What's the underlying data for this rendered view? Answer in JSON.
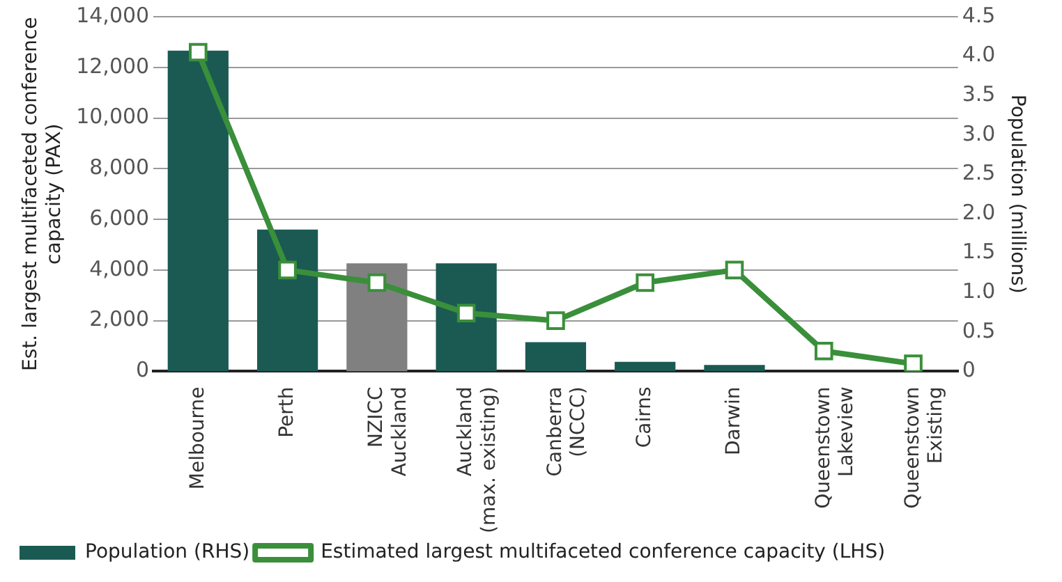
{
  "chart_data": {
    "type": "bar",
    "categories": [
      "Melbourne",
      "Perth",
      "NZICC Auckland",
      "Auckland (max. existing)",
      "Canberra (NCCC)",
      "Cairns",
      "Darwin",
      "Queenstown Lakeview",
      "Queenstown Existing"
    ],
    "series": [
      {
        "name": "Population (RHS)",
        "axis": "y2",
        "color": "#1b5a52",
        "colors": [
          "#1b5a52",
          "#1b5a52",
          "#808080",
          "#1b5a52",
          "#1b5a52",
          "#1b5a52",
          "#1b5a52",
          "#1b5a52",
          "#1b5a52"
        ],
        "values": [
          4.07,
          1.8,
          1.37,
          1.37,
          0.37,
          0.12,
          0.08,
          null,
          null
        ]
      },
      {
        "name": "Estimated largest multifaceted conference capacity (LHS)",
        "type": "line",
        "axis": "y",
        "color": "#3a8f3a",
        "marker": "square",
        "values": [
          12600,
          4000,
          3500,
          2300,
          2000,
          3500,
          4000,
          800,
          300
        ]
      }
    ],
    "ylabel": "Est. largest multifaceted conference capacity (PAX)",
    "y2label": "Population (millions)",
    "ylim": [
      0,
      14000
    ],
    "yticks": [
      {
        "value": 0,
        "label": "0"
      },
      {
        "value": 2000,
        "label": "2,000"
      },
      {
        "value": 4000,
        "label": "4,000"
      },
      {
        "value": 6000,
        "label": "6,000"
      },
      {
        "value": 8000,
        "label": "8,000"
      },
      {
        "value": 10000,
        "label": "10,000"
      },
      {
        "value": 12000,
        "label": "12,000"
      },
      {
        "value": 14000,
        "label": "14,000"
      }
    ],
    "y2lim": [
      0,
      4.5
    ],
    "y2ticks": [
      0,
      {
        "value": 0.5,
        "label": "0.5"
      },
      {
        "value": 1,
        "label": "1.0"
      },
      {
        "value": 1.5,
        "label": "1.5"
      },
      {
        "value": 2,
        "label": "2.0"
      },
      {
        "value": 2.5,
        "label": "2.5"
      },
      {
        "value": 3,
        "label": "3.0"
      },
      {
        "value": 3.5,
        "label": "3.5"
      },
      {
        "value": 4,
        "label": "4.0"
      },
      {
        "value": 4.5,
        "label": "4.5"
      }
    ],
    "grid": "y",
    "legend": "bottom left"
  }
}
